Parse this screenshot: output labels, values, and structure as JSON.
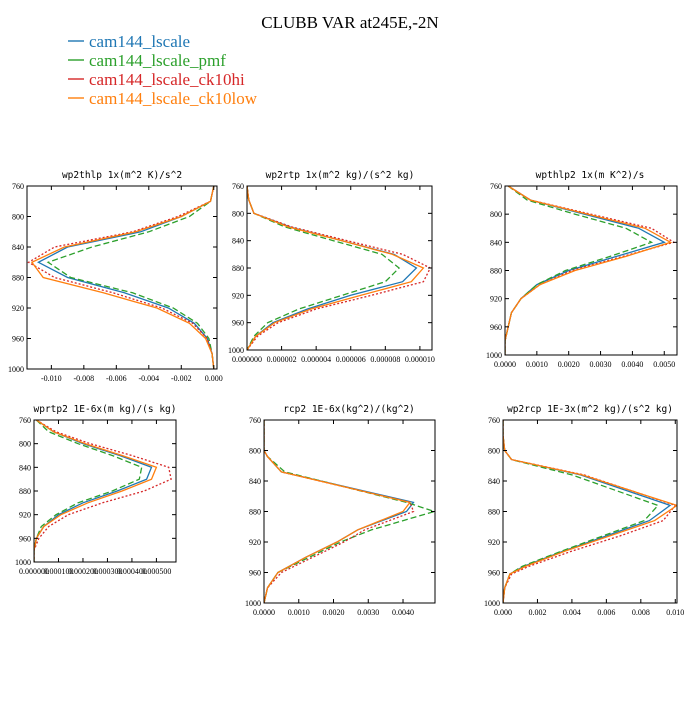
{
  "title": "CLUBB VAR at245E,-2N",
  "legend": [
    {
      "name": "cam144_lscale",
      "color": "#1f77b4"
    },
    {
      "name": "cam144_lscale_pmf",
      "color": "#2ca02c"
    },
    {
      "name": "cam144_lscale_ck10hi",
      "color": "#d62728"
    },
    {
      "name": "cam144_lscale_ck10low",
      "color": "#ff7f0e"
    }
  ],
  "chart_data": [
    {
      "type": "line",
      "title": "wp2thlp  1x(m^2 K)/s^2",
      "xlim": [
        -0.0115,
        0.0002
      ],
      "ylim": [
        760,
        1000
      ],
      "xticks": [
        "-0.010",
        "-0.008",
        "-0.006",
        "-0.004",
        "-0.002",
        "0.000"
      ],
      "xtick_values": [
        -0.01,
        -0.008,
        -0.006,
        -0.004,
        -0.002,
        0.0
      ],
      "yticks": [
        "760",
        "800",
        "840",
        "880",
        "920",
        "960",
        "1000"
      ],
      "ytick_values": [
        760,
        800,
        840,
        880,
        920,
        960,
        1000
      ],
      "y": [
        760,
        780,
        800,
        820,
        840,
        860,
        880,
        900,
        920,
        940,
        960,
        980,
        1000
      ],
      "series": [
        {
          "values": [
            0,
            -0.0002,
            -0.002,
            -0.0045,
            -0.009,
            -0.0108,
            -0.009,
            -0.0055,
            -0.0028,
            -0.0012,
            -0.0004,
            -0.0001,
            0
          ]
        },
        {
          "values": [
            0,
            -0.0002,
            -0.0015,
            -0.004,
            -0.0075,
            -0.0102,
            -0.0088,
            -0.005,
            -0.0025,
            -0.001,
            -0.0003,
            -0.0001,
            0
          ]
        },
        {
          "values": [
            0,
            -0.0002,
            -0.0022,
            -0.005,
            -0.0098,
            -0.0114,
            -0.0098,
            -0.0062,
            -0.0032,
            -0.0013,
            -0.0004,
            -0.0001,
            0
          ]
        },
        {
          "values": [
            0,
            -0.0002,
            -0.002,
            -0.0048,
            -0.0092,
            -0.0112,
            -0.0105,
            -0.0068,
            -0.0035,
            -0.0015,
            -0.0005,
            -0.0001,
            0
          ]
        }
      ]
    },
    {
      "type": "line",
      "title": "wp2rtp   1x(m^2 kg)/(s^2 kg)",
      "xlim": [
        0,
        1.07e-05
      ],
      "ylim": [
        760,
        1000
      ],
      "xticks": [
        "0.000000",
        "0.000002",
        "0.000004",
        "0.000006",
        "0.000008",
        "0.000010"
      ],
      "xtick_values": [
        0,
        2e-06,
        4e-06,
        6e-06,
        8e-06,
        1e-05
      ],
      "yticks": [
        "760",
        "800",
        "840",
        "880",
        "920",
        "960",
        "1000"
      ],
      "ytick_values": [
        760,
        800,
        840,
        880,
        920,
        960,
        1000
      ],
      "y": [
        760,
        780,
        800,
        820,
        840,
        860,
        880,
        900,
        920,
        940,
        960,
        980,
        1000
      ],
      "series": [
        {
          "values": [
            0,
            1e-07,
            4e-07,
            2.5e-06,
            5.5e-06,
            8.5e-06,
            9.8e-06,
            9e-06,
            6e-06,
            3.5e-06,
            1.5e-06,
            5e-07,
            0
          ]
        },
        {
          "values": [
            0,
            1e-07,
            4e-07,
            2.2e-06,
            5e-06,
            7.8e-06,
            8.8e-06,
            8e-06,
            5.5e-06,
            3e-06,
            1.2e-06,
            4e-07,
            0
          ]
        },
        {
          "values": [
            0,
            1e-07,
            4e-07,
            2.6e-06,
            5.8e-06,
            9e-06,
            1.06e-05,
            1.02e-05,
            7.2e-06,
            4e-06,
            1.8e-06,
            6e-07,
            0
          ]
        },
        {
          "values": [
            0,
            1e-07,
            4e-07,
            2.4e-06,
            5.5e-06,
            8.4e-06,
            1.02e-05,
            9.5e-06,
            6.6e-06,
            3.7e-06,
            1.6e-06,
            5e-07,
            0
          ]
        }
      ]
    },
    {
      "type": "line",
      "title": "wpthlp2  1x(m K^2)/s",
      "xlim": [
        0,
        0.0054
      ],
      "ylim": [
        760,
        1000
      ],
      "xticks": [
        "0.0000",
        "0.0010",
        "0.0020",
        "0.0030",
        "0.0040",
        "0.0050"
      ],
      "xtick_values": [
        0,
        0.001,
        0.002,
        0.003,
        0.004,
        0.005
      ],
      "yticks": [
        "760",
        "800",
        "840",
        "880",
        "920",
        "960",
        "1000"
      ],
      "ytick_values": [
        760,
        800,
        840,
        880,
        920,
        960,
        1000
      ],
      "y": [
        760,
        780,
        800,
        820,
        840,
        860,
        880,
        900,
        920,
        940,
        960,
        980,
        1000
      ],
      "series": [
        {
          "values": [
            0.0001,
            0.0008,
            0.0025,
            0.0042,
            0.005,
            0.0035,
            0.002,
            0.001,
            0.0005,
            0.0002,
            0.0001,
            0,
            0
          ]
        },
        {
          "values": [
            0.0001,
            0.0007,
            0.0022,
            0.0038,
            0.0046,
            0.0033,
            0.0019,
            0.001,
            0.0005,
            0.0002,
            0.0001,
            0,
            0
          ]
        },
        {
          "values": [
            0.0001,
            0.0008,
            0.0027,
            0.0046,
            0.0053,
            0.0037,
            0.0021,
            0.0011,
            0.0005,
            0.0002,
            0.0001,
            0,
            0
          ]
        },
        {
          "values": [
            0.0001,
            0.0008,
            0.0026,
            0.0044,
            0.0052,
            0.0038,
            0.0022,
            0.0011,
            0.0005,
            0.0002,
            0.0001,
            0,
            0
          ]
        }
      ]
    },
    {
      "type": "line",
      "title": "wprtp2  1E-6x(m kg)/(s kg)",
      "xlim": [
        0,
        0.00058
      ],
      "ylim": [
        760,
        1000
      ],
      "xticks": [
        "0.000000",
        "0.000100",
        "0.000200",
        "0.000300",
        "0.000400",
        "0.000500"
      ],
      "xtick_values": [
        0,
        0.0001,
        0.0002,
        0.0003,
        0.0004,
        0.0005
      ],
      "yticks": [
        "760",
        "800",
        "840",
        "880",
        "920",
        "960",
        "1000"
      ],
      "ytick_values": [
        760,
        800,
        840,
        880,
        920,
        960,
        1000
      ],
      "y": [
        760,
        780,
        800,
        820,
        840,
        860,
        880,
        900,
        920,
        940,
        960,
        980,
        1000
      ],
      "series": [
        {
          "values": [
            1e-05,
            8e-05,
            0.0002,
            0.00035,
            0.00048,
            0.00046,
            0.00034,
            0.0002,
            0.0001,
            4e-05,
            1e-05,
            0,
            0
          ]
        },
        {
          "values": [
            1e-05,
            6e-05,
            0.00018,
            0.00032,
            0.00044,
            0.00043,
            0.00032,
            0.00018,
            9e-05,
            3e-05,
            1e-05,
            0,
            0
          ]
        },
        {
          "values": [
            1e-05,
            9e-05,
            0.00023,
            0.0004,
            0.00055,
            0.00056,
            0.00045,
            0.00028,
            0.00014,
            6e-05,
            2e-05,
            0,
            0
          ]
        },
        {
          "values": [
            1e-05,
            8e-05,
            0.00021,
            0.00036,
            0.0005,
            0.00048,
            0.00036,
            0.00022,
            0.00011,
            4e-05,
            1e-05,
            0,
            0
          ]
        }
      ]
    },
    {
      "type": "line",
      "title": "rcp2   1E-6x(kg^2)/(kg^2)",
      "xlim": [
        0,
        0.00492
      ],
      "ylim": [
        760,
        1000
      ],
      "xticks": [
        "0.0000",
        "0.0010",
        "0.0020",
        "0.0030",
        "0.0040"
      ],
      "xtick_values": [
        0,
        0.001,
        0.002,
        0.003,
        0.004
      ],
      "yticks": [
        "760",
        "800",
        "840",
        "880",
        "920",
        "960",
        "1000"
      ],
      "ytick_values": [
        760,
        800,
        840,
        880,
        920,
        960,
        1000
      ],
      "y": [
        760,
        780,
        800,
        808,
        828,
        868,
        880,
        904,
        920,
        940,
        960,
        980,
        1000
      ],
      "series": [
        {
          "values": [
            0,
            0,
            0,
            0.0001,
            0.0005,
            0.0043,
            0.0041,
            0.0027,
            0.0021,
            0.0012,
            0.0004,
            0.0001,
            0
          ]
        },
        {
          "values": [
            0,
            0,
            0,
            0.0001,
            0.0006,
            0.0041,
            0.0049,
            0.0031,
            0.0022,
            0.0013,
            0.0004,
            0.0001,
            0
          ]
        },
        {
          "values": [
            0,
            0,
            0,
            0.0001,
            0.0005,
            0.0042,
            0.0043,
            0.0029,
            0.0023,
            0.0014,
            0.0005,
            0.0001,
            0
          ]
        },
        {
          "values": [
            0,
            0,
            0,
            0.0001,
            0.0005,
            0.0042,
            0.004,
            0.0027,
            0.0021,
            0.0012,
            0.0004,
            0.0001,
            0
          ]
        }
      ]
    },
    {
      "type": "line",
      "title": "wp2rcp   1E-3x(m^2 kg)/(s^2 kg)",
      "xlim": [
        0,
        0.0101
      ],
      "ylim": [
        760,
        1000
      ],
      "xticks": [
        "0.000",
        "0.002",
        "0.004",
        "0.006",
        "0.008",
        "0.010"
      ],
      "xtick_values": [
        0,
        0.002,
        0.004,
        0.006,
        0.008,
        0.01
      ],
      "yticks": [
        "760",
        "800",
        "840",
        "880",
        "920",
        "960",
        "1000"
      ],
      "ytick_values": [
        760,
        800,
        840,
        880,
        920,
        960,
        1000
      ],
      "y": [
        760,
        780,
        800,
        812,
        832,
        872,
        892,
        912,
        932,
        952,
        962,
        980,
        1000
      ],
      "series": [
        {
          "values": [
            0,
            0,
            0.0001,
            0.0005,
            0.0045,
            0.0097,
            0.0085,
            0.006,
            0.0035,
            0.0012,
            0.0004,
            0.0001,
            0
          ]
        },
        {
          "values": [
            0,
            0,
            0.0001,
            0.0005,
            0.004,
            0.009,
            0.0082,
            0.0058,
            0.0034,
            0.0011,
            0.0004,
            0.0001,
            0
          ]
        },
        {
          "values": [
            0,
            0,
            0.0001,
            0.0005,
            0.0047,
            0.01,
            0.0093,
            0.0068,
            0.004,
            0.0015,
            0.0005,
            0.0001,
            0
          ]
        },
        {
          "values": [
            0,
            0,
            0.0001,
            0.0005,
            0.0046,
            0.0101,
            0.0088,
            0.0062,
            0.0036,
            0.0013,
            0.0004,
            0.0001,
            0
          ]
        }
      ]
    }
  ]
}
